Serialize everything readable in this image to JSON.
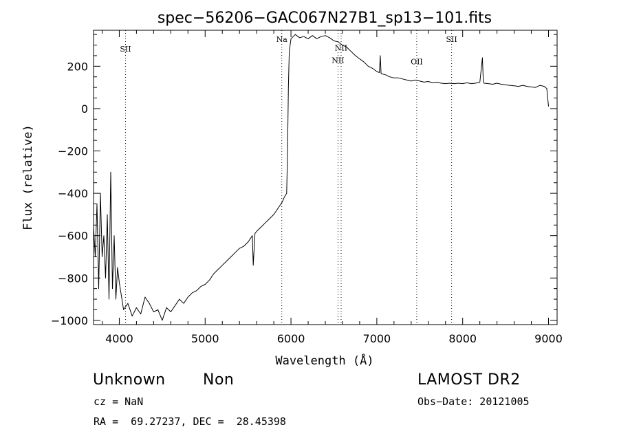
{
  "chart_data": {
    "type": "line",
    "title": "spec−56206−GAC067N27B1_sp13−101.fits",
    "xlabel": "Wavelength (Å)",
    "ylabel": "Flux (relative)",
    "xlim": [
      3700,
      9100
    ],
    "ylim": [
      -1020,
      370
    ],
    "x_ticks": [
      4000,
      5000,
      6000,
      7000,
      8000,
      9000
    ],
    "x_tick_labels": [
      "4000",
      "5000",
      "6000",
      "7000",
      "8000",
      "9000"
    ],
    "y_ticks": [
      -1000,
      -800,
      -600,
      -400,
      -200,
      0,
      200
    ],
    "y_tick_labels": [
      "−1000",
      "−800",
      "−600",
      "−400",
      "−200",
      "0",
      "200"
    ],
    "grid": false,
    "lines": [
      {
        "name": "SII",
        "x": 4072,
        "label_y": 270
      },
      {
        "name": "Na",
        "x": 5893,
        "label_y": 315
      },
      {
        "name": "NII",
        "x": 6548,
        "label_y": 215
      },
      {
        "name": "NII",
        "x": 6584,
        "label_y": 275
      },
      {
        "name": "OII",
        "x": 7465,
        "label_y": 210
      },
      {
        "name": "SII",
        "x": 7871,
        "label_y": 315
      }
    ],
    "series": [
      {
        "x": [
          3700,
          3720,
          3740,
          3760,
          3780,
          3800,
          3820,
          3840,
          3860,
          3880,
          3900,
          3920,
          3940,
          3960,
          3980,
          4000,
          4050,
          4100,
          4150,
          4200,
          4250,
          4300,
          4350,
          4400,
          4450,
          4500,
          4550,
          4600,
          4650,
          4700,
          4750,
          4800,
          4850,
          4900,
          4950,
          5000,
          5050,
          5100,
          5150,
          5200,
          5250,
          5300,
          5350,
          5400,
          5450,
          5500,
          5550,
          5560,
          5580,
          5600,
          5650,
          5700,
          5750,
          5800,
          5850,
          5900,
          5920,
          5950,
          5960,
          5970,
          5980,
          6000,
          6050,
          6100,
          6150,
          6200,
          6250,
          6300,
          6350,
          6400,
          6450,
          6500,
          6550,
          6600,
          6650,
          6700,
          6750,
          6800,
          6850,
          6900,
          6950,
          7000,
          7030,
          7040,
          7050,
          7100,
          7150,
          7200,
          7250,
          7300,
          7350,
          7400,
          7450,
          7500,
          7550,
          7600,
          7650,
          7700,
          7750,
          7800,
          7850,
          7900,
          7950,
          8000,
          8050,
          8100,
          8150,
          8200,
          8230,
          8240,
          8250,
          8300,
          8350,
          8400,
          8450,
          8500,
          8550,
          8600,
          8650,
          8700,
          8750,
          8800,
          8850,
          8900,
          8950,
          8980,
          9000
        ],
        "y": [
          -560,
          -700,
          -450,
          -850,
          -400,
          -700,
          -600,
          -800,
          -500,
          -900,
          -300,
          -850,
          -600,
          -900,
          -750,
          -820,
          -950,
          -920,
          -980,
          -940,
          -970,
          -890,
          -920,
          -960,
          -950,
          -1000,
          -940,
          -960,
          -930,
          -900,
          -920,
          -890,
          -870,
          -860,
          -840,
          -830,
          -810,
          -780,
          -760,
          -740,
          -720,
          -700,
          -680,
          -660,
          -650,
          -630,
          -600,
          -740,
          -590,
          -580,
          -560,
          -540,
          -520,
          -500,
          -470,
          -440,
          -420,
          -400,
          -200,
          100,
          270,
          330,
          350,
          335,
          340,
          330,
          345,
          330,
          340,
          345,
          335,
          320,
          315,
          300,
          290,
          270,
          250,
          235,
          220,
          200,
          190,
          175,
          170,
          250,
          165,
          160,
          150,
          145,
          145,
          140,
          135,
          130,
          135,
          130,
          125,
          128,
          122,
          125,
          120,
          118,
          120,
          118,
          120,
          118,
          122,
          118,
          120,
          125,
          240,
          130,
          120,
          118,
          115,
          120,
          115,
          112,
          110,
          108,
          105,
          110,
          105,
          102,
          100,
          110,
          105,
          95,
          10
        ]
      }
    ]
  },
  "info": {
    "object_class": "Unknown",
    "subclass": "Non",
    "survey": "LAMOST DR2",
    "cz": "cz = NaN",
    "obs_date": "Obs−Date: 20121005",
    "coords": "RA =  69.27237, DEC =  28.45398"
  }
}
